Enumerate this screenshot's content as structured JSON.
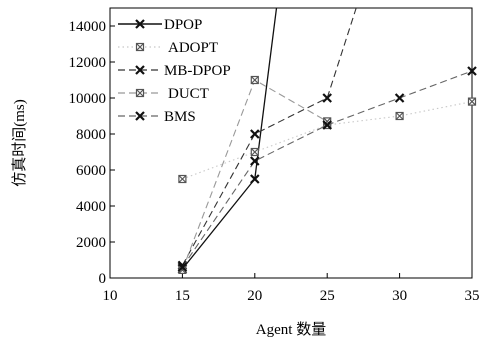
{
  "chart_data": {
    "type": "line",
    "xlabel": "Agent 数量",
    "ylabel": "仿真时间(ms)",
    "xlim": [
      10,
      35
    ],
    "ylim": [
      0,
      15000
    ],
    "xticks": [
      10,
      15,
      20,
      25,
      30,
      35
    ],
    "yticks": [
      0,
      2000,
      4000,
      6000,
      8000,
      10000,
      12000,
      14000
    ],
    "grid": false,
    "legend_position": "top-left",
    "series": [
      {
        "name": "DPOP",
        "color": "#111111",
        "dash": "solid",
        "marker": "x-bold",
        "x": [
          15,
          20,
          21.5
        ],
        "y": [
          500,
          5500,
          15000
        ]
      },
      {
        "name": "ADOPT",
        "color": "#c8c8c8",
        "dash": "dotted",
        "marker": "box-x",
        "x": [
          15,
          20,
          25,
          30,
          35
        ],
        "y": [
          5500,
          7000,
          8500,
          9000,
          9800
        ]
      },
      {
        "name": "MB-DPOP",
        "color": "#333333",
        "dash": "dashed",
        "marker": "x-bold",
        "x": [
          15,
          20,
          25,
          27
        ],
        "y": [
          700,
          8000,
          10000,
          15000
        ]
      },
      {
        "name": "DUCT",
        "color": "#999999",
        "dash": "dashed",
        "marker": "box-x",
        "x": [
          15,
          20,
          25
        ],
        "y": [
          450,
          11000,
          8700
        ]
      },
      {
        "name": "BMS",
        "color": "#666666",
        "dash": "dashed",
        "marker": "x-bold",
        "x": [
          15,
          20,
          25,
          30,
          35
        ],
        "y": [
          600,
          6500,
          8500,
          10000,
          11500
        ]
      }
    ]
  }
}
